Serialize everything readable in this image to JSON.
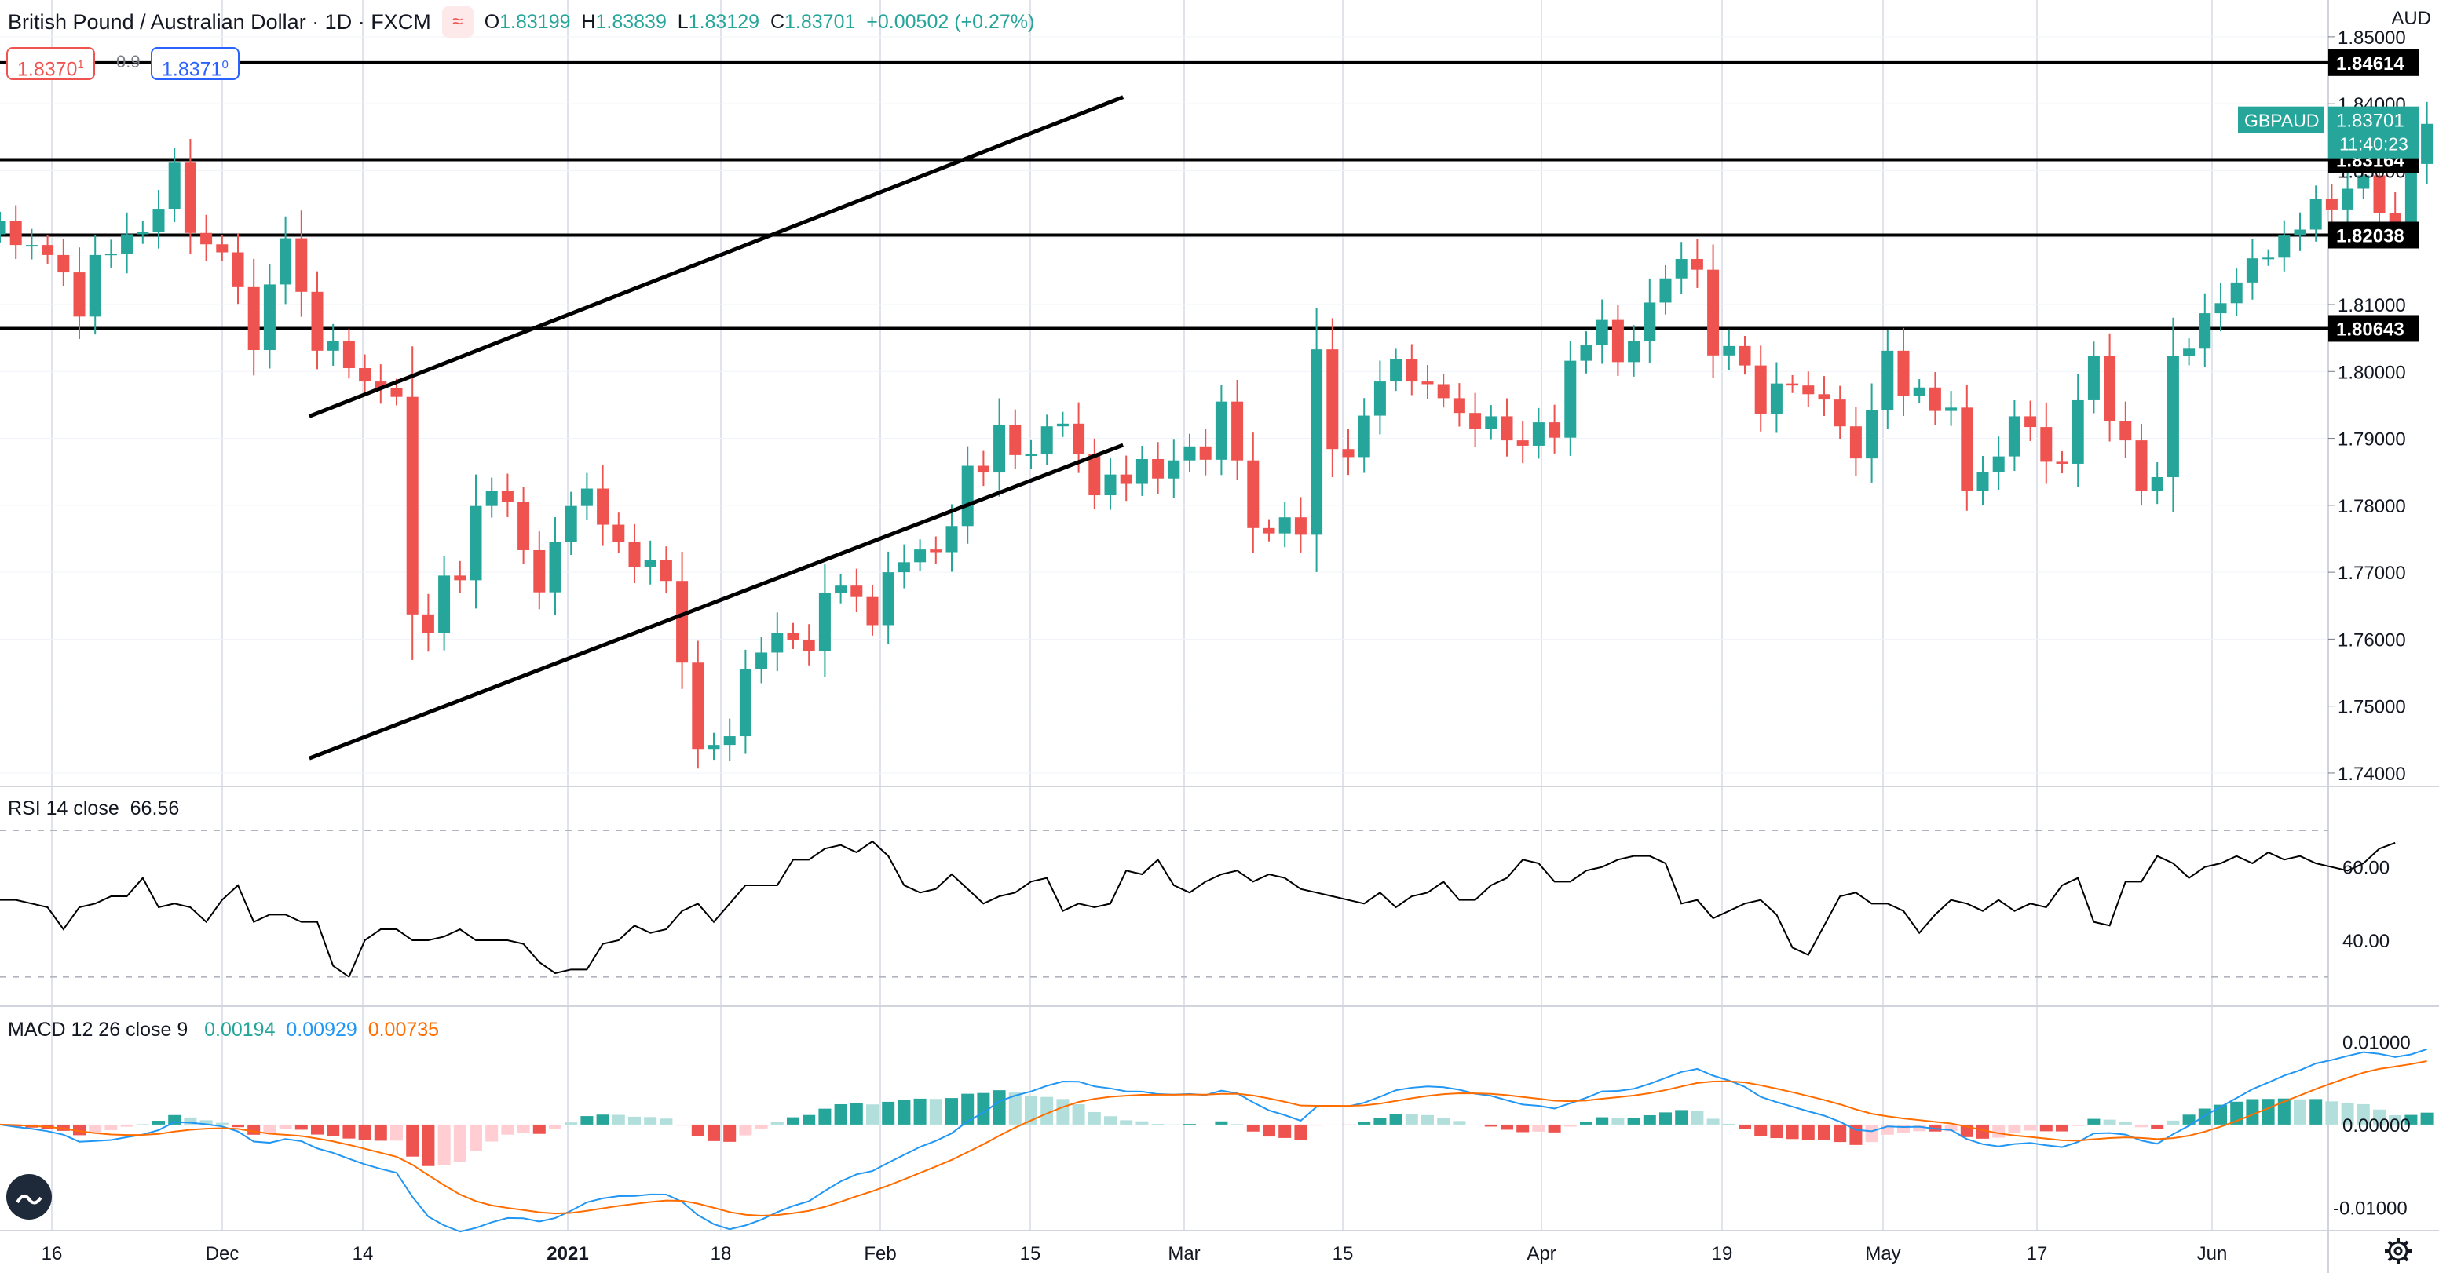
{
  "header": {
    "symbol": "British Pound / Australian Dollar · 1D · FXCM",
    "logo_icon": "tradingview-wave-icon",
    "o_label": "O",
    "o_value": "1.83199",
    "h_label": "H",
    "h_value": "1.83839",
    "l_label": "L",
    "l_value": "1.83129",
    "c_label": "C",
    "c_value": "1.83701",
    "change": "+0.00502 (+0.27%)"
  },
  "trade": {
    "sell_price": "1.8370",
    "sell_sup": "1",
    "spread": "0.9",
    "buy_price": "1.8371",
    "buy_sup": "0"
  },
  "currency": "AUD",
  "price_axis": {
    "ticks": [
      "1.85000",
      "1.84000",
      "1.83000",
      "1.82000",
      "1.81000",
      "1.80000",
      "1.79000",
      "1.78000",
      "1.77000",
      "1.76000",
      "1.75000",
      "1.74000"
    ],
    "levels": [
      {
        "value": 1.84614,
        "label": "1.84614"
      },
      {
        "value": 1.83164,
        "label": "1.83164"
      },
      {
        "value": 1.82038,
        "label": "1.82038"
      },
      {
        "value": 1.80643,
        "label": "1.80643"
      }
    ],
    "last": {
      "symbol": "GBPAUD",
      "price": "1.83701",
      "countdown": "11:40:23",
      "value": 1.83701
    }
  },
  "time_axis": {
    "labels": [
      {
        "text": "16",
        "bold": false
      },
      {
        "text": "Dec",
        "bold": false
      },
      {
        "text": "14",
        "bold": false
      },
      {
        "text": "2021",
        "bold": true
      },
      {
        "text": "18",
        "bold": false
      },
      {
        "text": "Feb",
        "bold": false
      },
      {
        "text": "15",
        "bold": false
      },
      {
        "text": "Mar",
        "bold": false
      },
      {
        "text": "15",
        "bold": false
      },
      {
        "text": "Apr",
        "bold": false
      },
      {
        "text": "19",
        "bold": false
      },
      {
        "text": "May",
        "bold": false
      },
      {
        "text": "17",
        "bold": false
      },
      {
        "text": "Jun",
        "bold": false
      }
    ]
  },
  "rsi": {
    "label": "RSI 14 close",
    "value": "66.56",
    "ticks": [
      "60.00",
      "40.00"
    ],
    "upper": 70,
    "lower": 30,
    "values": [
      51,
      51,
      50,
      49,
      43,
      49,
      50,
      52,
      52,
      57,
      49,
      50,
      49,
      45,
      51,
      55,
      45,
      47,
      47,
      45,
      45,
      33,
      30,
      40,
      43,
      43,
      40,
      40,
      41,
      43,
      40,
      40,
      40,
      39,
      34,
      31,
      32,
      32,
      39,
      40,
      44,
      42,
      43,
      48,
      50,
      45,
      50,
      55,
      55,
      55,
      62,
      62,
      65,
      66,
      64,
      67,
      63,
      55,
      53,
      54,
      58,
      54,
      50,
      52,
      53,
      56,
      57,
      48,
      50,
      49,
      50,
      59,
      58,
      62,
      55,
      53,
      56,
      58,
      59,
      56,
      58,
      57,
      54,
      53,
      52,
      51,
      50,
      53,
      49,
      52,
      53,
      56,
      51,
      51,
      55,
      57,
      62,
      61,
      56,
      56,
      59,
      60,
      62,
      63,
      63,
      61,
      50,
      51,
      46,
      48,
      50,
      51,
      47,
      38,
      36,
      44,
      52,
      53,
      50,
      50,
      48,
      42,
      47,
      51,
      50,
      48,
      51,
      48,
      50,
      49,
      55,
      57,
      45,
      44,
      56,
      56,
      63,
      61,
      57,
      60,
      61,
      63,
      61,
      64,
      62,
      63,
      61,
      60,
      59,
      61,
      65,
      66.6
    ]
  },
  "macd": {
    "label": "MACD 12 26 close 9",
    "hist_value": "0.00194",
    "macd_value": "0.00929",
    "signal_value": "0.00735",
    "colors": {
      "hist": "#26a69a",
      "macd": "#2196f3",
      "signal": "#ff6d00"
    },
    "ticks": [
      "0.01000",
      "0.00000",
      "-0.01000"
    ]
  },
  "chart_data": {
    "type": "candlestick",
    "symbol": "GBPAUD",
    "interval": "1D",
    "ylim": [
      1.738,
      1.8555
    ],
    "colors": {
      "up": "#26a69a",
      "down": "#ef5350"
    },
    "closes": [
      1.8225,
      1.8189,
      1.8189,
      1.8174,
      1.8148,
      1.8082,
      1.8174,
      1.8176,
      1.8205,
      1.8209,
      1.8243,
      1.8312,
      1.8207,
      1.819,
      1.8178,
      1.8126,
      1.8032,
      1.813,
      1.8199,
      1.8119,
      1.8031,
      1.8046,
      1.8005,
      1.7985,
      1.7975,
      1.7962,
      1.7637,
      1.7609,
      1.7695,
      1.7688,
      1.7799,
      1.7822,
      1.7805,
      1.7733,
      1.767,
      1.7745,
      1.7799,
      1.7825,
      1.7771,
      1.7745,
      1.7708,
      1.7718,
      1.7687,
      1.7565,
      1.7436,
      1.7442,
      1.7455,
      1.7555,
      1.758,
      1.7609,
      1.7599,
      1.7582,
      1.7669,
      1.768,
      1.7663,
      1.7621,
      1.77,
      1.7715,
      1.7734,
      1.773,
      1.7769,
      1.7859,
      1.7849,
      1.792,
      1.7875,
      1.7876,
      1.7918,
      1.7922,
      1.7877,
      1.7815,
      1.7846,
      1.7832,
      1.7869,
      1.784,
      1.7867,
      1.7888,
      1.7868,
      1.7955,
      1.7867,
      1.7766,
      1.7758,
      1.7782,
      1.7756,
      1.8033,
      1.7884,
      1.7872,
      1.7934,
      1.7985,
      1.8018,
      1.7985,
      1.7981,
      1.796,
      1.7938,
      1.7914,
      1.7933,
      1.7897,
      1.7889,
      1.7924,
      1.7901,
      1.8016,
      1.8039,
      1.8077,
      1.8014,
      1.8045,
      1.8103,
      1.8139,
      1.8168,
      1.8152,
      1.8024,
      1.8038,
      1.8009,
      1.7937,
      1.7982,
      1.7979,
      1.7966,
      1.7958,
      1.7918,
      1.787,
      1.7942,
      1.8031,
      1.7964,
      1.7976,
      1.7941,
      1.7946,
      1.7822,
      1.785,
      1.7873,
      1.7933,
      1.7917,
      1.7865,
      1.7862,
      1.7957,
      1.8023,
      1.7926,
      1.7897,
      1.7822,
      1.7842,
      1.8023,
      1.8034,
      1.8087,
      1.8102,
      1.8133,
      1.8169,
      1.817,
      1.8203,
      1.8212,
      1.8258,
      1.8242,
      1.8273,
      1.8293,
      1.8237,
      1.8219,
      1.831,
      1.837
    ]
  }
}
